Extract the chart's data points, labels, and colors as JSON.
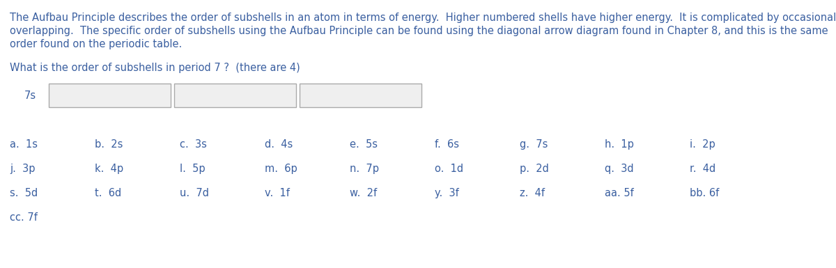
{
  "background_color": "#ffffff",
  "text_color": "#3a5fa0",
  "paragraph_lines": [
    "The Aufbau Principle describes the order of subshells in an atom in terms of energy.  Higher numbered shells have higher energy.  It is complicated by occasional",
    "overlapping.  The specific order of subshells using the Aufbau Principle can be found using the diagonal arrow diagram found in Chapter 8, and this is the same",
    "order found on the periodic table."
  ],
  "question": "What is the order of subshells in period 7 ?  (there are 4)",
  "label_7s": "7s",
  "choices_row1": [
    "a.  1s",
    "b.  2s",
    "c.  3s",
    "d.  4s",
    "e.  5s",
    "f.  6s",
    "g.  7s",
    "h.  1p",
    "i.  2p"
  ],
  "choices_row2": [
    "j.  3p",
    "k.  4p",
    "l.  5p",
    "m.  6p",
    "n.  7p",
    "o.  1d",
    "p.  2d",
    "q.  3d",
    "r.  4d"
  ],
  "choices_row3": [
    "s.  5d",
    "t.  6d",
    "u.  7d",
    "v.  1f",
    "w.  2f",
    "y.  3f",
    "z.  4f",
    "aa. 5f",
    "bb. 6f"
  ],
  "choices_row4": [
    "cc. 7f"
  ],
  "font_size_para": 10.5,
  "font_size_question": 10.5,
  "font_size_choices": 10.5,
  "box_edge_color": "#aaaaaa",
  "box_face_color": "#efefef"
}
